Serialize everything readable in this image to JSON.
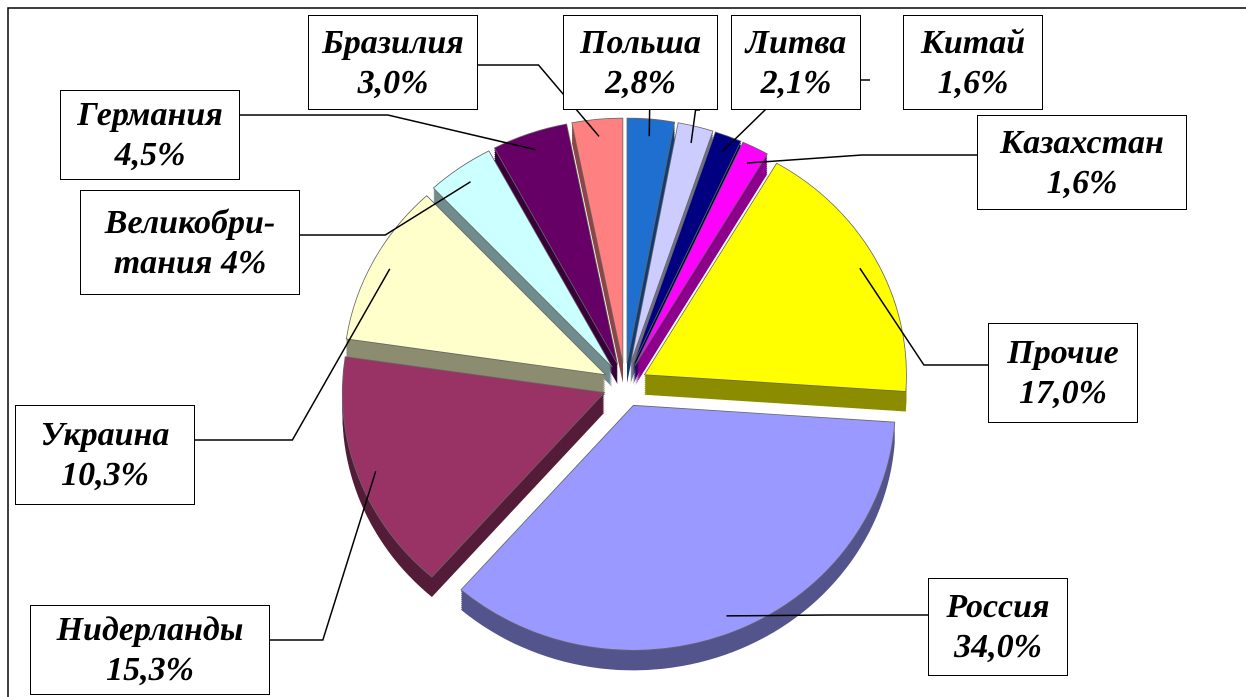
{
  "chart_data": {
    "type": "pie",
    "categories": [
      "Польша",
      "Литва",
      "Китай",
      "Казахстан",
      "Прочие",
      "Россия",
      "Нидерланды",
      "Украина",
      "Великобри-тания",
      "Германия",
      "Бразилия"
    ],
    "values": [
      2.8,
      2.1,
      1.6,
      1.6,
      17.0,
      34.0,
      15.3,
      10.3,
      4,
      4.5,
      3.0
    ],
    "value_labels": [
      "2,8%",
      "2,1%",
      "1,6%",
      "1,6%",
      "17,0%",
      "34,0%",
      "15,3%",
      "10,3%",
      "4%",
      "4,5%",
      "3,0%"
    ],
    "colors": [
      "#1f6fd0",
      "#ccccff",
      "#000080",
      "#ff00ff",
      "#ffff00",
      "#9999ff",
      "#993366",
      "#ffffcc",
      "#ccffff",
      "#660066",
      "#ff8080"
    ]
  }
}
